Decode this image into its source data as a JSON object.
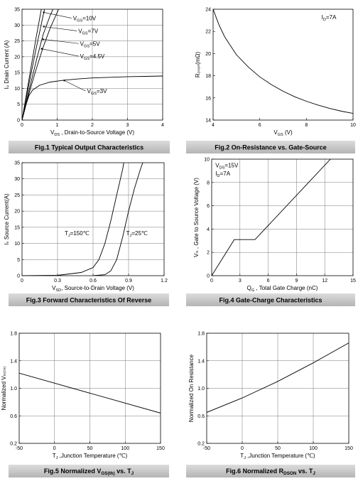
{
  "chart_data": [
    {
      "type": "line",
      "caption": "Fig.1 Typical Output Characteristics",
      "xlabel_main": "V",
      "xlabel_sub": "DS",
      "xlabel_rest": " , Drain-to-Source Voltage (V)",
      "ylabel": "I₀ Drain Current (A)",
      "xlim": [
        0,
        4
      ],
      "ylim": [
        0,
        35
      ],
      "xticks": [
        0,
        1,
        2,
        3,
        4
      ],
      "yticks": [
        0,
        5,
        10,
        15,
        20,
        25,
        30,
        35
      ],
      "grid": true,
      "series": [
        {
          "name": "VGS=10V",
          "x": [
            0,
            0.2,
            0.4,
            0.55
          ],
          "y": [
            0,
            13,
            26,
            35
          ]
        },
        {
          "name": "VGS=7V",
          "x": [
            0,
            0.2,
            0.4,
            0.6,
            0.64
          ],
          "y": [
            0,
            11.5,
            22.5,
            33,
            35
          ]
        },
        {
          "name": "VGS=5V",
          "x": [
            0,
            0.2,
            0.4,
            0.6,
            0.8,
            0.88
          ],
          "y": [
            0,
            9.5,
            18.5,
            27,
            33,
            35
          ]
        },
        {
          "name": "VGS=4.5V",
          "x": [
            0,
            0.2,
            0.4,
            0.6,
            0.8,
            1.0,
            1.04
          ],
          "y": [
            0,
            8.5,
            16,
            23,
            29,
            34,
            35
          ]
        },
        {
          "name": "VGS=3V",
          "x": [
            0,
            0.1,
            0.2,
            0.3,
            0.5,
            0.8,
            1.2,
            1.6,
            2.0,
            2.5,
            3.0,
            3.5,
            4.0
          ],
          "y": [
            0,
            4.5,
            7.8,
            9.5,
            11,
            12,
            12.6,
            13,
            13.3,
            13.5,
            13.7,
            13.8,
            13.9
          ]
        }
      ],
      "annotations": [
        {
          "main": "V",
          "sub": "GS",
          "rest": "=10V",
          "x": 1.45,
          "y": 31.5,
          "ax": 0.62,
          "ay": 34
        },
        {
          "main": "V",
          "sub": "GS",
          "rest": "=7V",
          "x": 1.6,
          "y": 27.5,
          "ax": 0.62,
          "ay": 29.5
        },
        {
          "main": "V",
          "sub": "GS",
          "rest": "=5V",
          "x": 1.65,
          "y": 23.5,
          "ax": 0.6,
          "ay": 25.5
        },
        {
          "main": "V",
          "sub": "GS",
          "rest": "=4.5V",
          "x": 1.65,
          "y": 19.5,
          "ax": 0.56,
          "ay": 22.5
        },
        {
          "main": "V",
          "sub": "GS",
          "rest": "=3V",
          "x": 1.85,
          "y": 8.5,
          "ax": 1.2,
          "ay": 12.5
        }
      ]
    },
    {
      "type": "line",
      "caption": "Fig.2 On-Resistance vs. Gate-Source",
      "xlabel_main": "V",
      "xlabel_sub": "GS",
      "xlabel_rest": " (V)",
      "ylabel": "R₀ₛₒₙ(mΩ)",
      "xlim": [
        4,
        10
      ],
      "ylim": [
        14,
        24
      ],
      "xticks": [
        4,
        6,
        8,
        10
      ],
      "yticks": [
        14,
        16,
        18,
        20,
        22,
        24
      ],
      "grid": false,
      "series": [
        {
          "name": "",
          "x": [
            4,
            4.25,
            4.5,
            5,
            5.5,
            6,
            6.5,
            7,
            7.5,
            8,
            8.5,
            9,
            9.5,
            10
          ],
          "y": [
            24,
            22.6,
            21.5,
            19.9,
            18.8,
            17.9,
            17.2,
            16.6,
            16.1,
            15.7,
            15.35,
            15.05,
            14.8,
            14.6
          ]
        }
      ],
      "annotations": [
        {
          "main": "I",
          "sub": "D",
          "rest": "=7A",
          "x": 8.65,
          "y": 23.1
        }
      ]
    },
    {
      "type": "line",
      "caption": "Fig.3 Forward Characteristics Of Reverse",
      "xlabel_main": "V",
      "xlabel_sub": "SD",
      "xlabel_rest": ", Source-to-Drain Voltage (V)",
      "ylabel": "Iₛ Source Current(A)",
      "xlim": [
        0,
        1.2
      ],
      "ylim": [
        0,
        35
      ],
      "xticks": [
        0,
        0.3,
        0.6,
        0.9,
        1.2
      ],
      "xticklabels": [
        "0",
        "0.3",
        "0.6",
        "0.9",
        "1.2"
      ],
      "yticks": [
        0,
        5,
        10,
        15,
        20,
        25,
        30,
        35
      ],
      "grid": true,
      "series": [
        {
          "name": "TJ=150℃",
          "x": [
            0,
            0.3,
            0.5,
            0.6,
            0.65,
            0.7,
            0.75,
            0.8,
            0.85,
            0.86
          ],
          "y": [
            0,
            0.1,
            1,
            2.5,
            5,
            10,
            17,
            25,
            33,
            35
          ]
        },
        {
          "name": "TJ=25℃",
          "x": [
            0.6,
            0.7,
            0.75,
            0.8,
            0.85,
            0.9,
            0.95,
            1.0,
            1.02
          ],
          "y": [
            0,
            0.3,
            1.5,
            5,
            12,
            20,
            27,
            33,
            35
          ]
        }
      ],
      "annotations": [
        {
          "main": "T",
          "sub": "J",
          "rest": "=150℃",
          "x": 0.36,
          "y": 12.5
        },
        {
          "main": "T",
          "sub": "J",
          "rest": "=25℃",
          "x": 0.88,
          "y": 12.5
        }
      ]
    },
    {
      "type": "line",
      "caption": "Fig.4 Gate-Charge Characteristics",
      "xlabel_main": "Q",
      "xlabel_sub": "G",
      "xlabel_rest": " , Total Gate Charge (nC)",
      "ylabel": "Vₗₛ , Gate to Source Voltage (V)",
      "xlim": [
        0,
        15
      ],
      "ylim": [
        0,
        10
      ],
      "xticks": [
        0,
        3,
        6,
        9,
        12,
        15
      ],
      "yticks": [
        0,
        2,
        4,
        6,
        8,
        10
      ],
      "grid": true,
      "series": [
        {
          "name": "",
          "x": [
            0,
            2.4,
            4.6,
            12.6
          ],
          "y": [
            0,
            3.1,
            3.1,
            10
          ]
        }
      ],
      "annotations": [
        {
          "main": "V",
          "sub": "DS",
          "rest": "=15V",
          "x": 0.4,
          "y": 9.3
        },
        {
          "main": "I",
          "sub": "D",
          "rest": "=7A",
          "x": 0.4,
          "y": 8.6
        }
      ]
    },
    {
      "type": "line",
      "caption_main": "Fig.5 Normalized V",
      "caption_sub": "GS(th)",
      "caption_rest": " vs. T",
      "caption_sub2": "J",
      "xlabel_main": "T",
      "xlabel_sub": "J",
      "xlabel_rest": " ,Junction Temperature (℃)",
      "ylabel": "Normalized Vₗₛ₍ₜₕ₎",
      "xlim": [
        -50,
        150
      ],
      "ylim": [
        0.2,
        1.8
      ],
      "xticks": [
        -50,
        0,
        50,
        100,
        150
      ],
      "yticks": [
        0.2,
        0.6,
        1.0,
        1.4,
        1.8
      ],
      "yticklabels": [
        "0.2",
        "0.6",
        "1.0",
        "1.4",
        "1.8"
      ],
      "grid": true,
      "series": [
        {
          "name": "",
          "x": [
            -50,
            150
          ],
          "y": [
            1.22,
            0.64
          ]
        }
      ]
    },
    {
      "type": "line",
      "caption_main": "Fig.6 Normalized R",
      "caption_sub": "DSON",
      "caption_rest": " vs. T",
      "caption_sub2": "J",
      "xlabel_main": "T",
      "xlabel_sub": "J",
      "xlabel_rest": " ,Junction Temperature (℃)",
      "ylabel": "Normalized On Resistance",
      "xlim": [
        -50,
        150
      ],
      "ylim": [
        0.2,
        1.8
      ],
      "xticks": [
        -50,
        0,
        50,
        100,
        150
      ],
      "yticks": [
        0.2,
        0.6,
        1.0,
        1.4,
        1.8
      ],
      "yticklabels": [
        "0.2",
        "0.6",
        "1.0",
        "1.4",
        "1.8"
      ],
      "grid": true,
      "series": [
        {
          "name": "",
          "x": [
            -50,
            0,
            50,
            100,
            150
          ],
          "y": [
            0.65,
            0.86,
            1.1,
            1.37,
            1.66
          ]
        }
      ]
    }
  ]
}
